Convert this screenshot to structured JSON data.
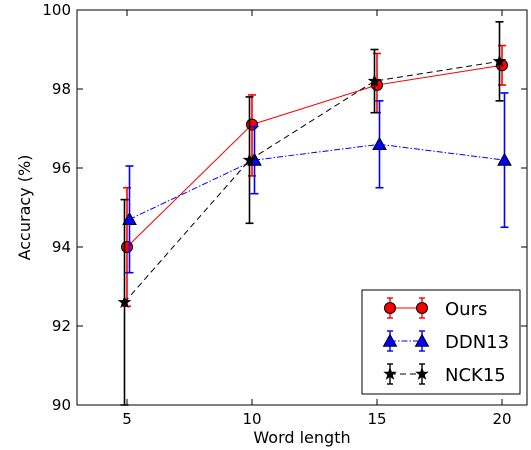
{
  "chart_data": {
    "type": "line",
    "xlabel": "Word length",
    "ylabel": "Accuracy (%)",
    "xlim": [
      3,
      21
    ],
    "ylim": [
      90,
      100
    ],
    "xticks": [
      5,
      10,
      15,
      20
    ],
    "yticks": [
      90,
      92,
      94,
      96,
      98,
      100
    ],
    "grid": false,
    "legend_position": "bottom-right",
    "series": [
      {
        "name": "Ours",
        "color": "#ff0000",
        "marker": "circle",
        "line_style": "solid",
        "x": [
          5.0,
          10.0,
          15.0,
          20.0
        ],
        "y": [
          94.0,
          97.1,
          98.1,
          98.6
        ],
        "err_low": [
          1.5,
          1.3,
          0.7,
          0.5
        ],
        "err_high": [
          1.5,
          0.75,
          0.8,
          0.5
        ]
      },
      {
        "name": "DDN13",
        "color": "#0000ff",
        "marker": "triangle",
        "line_style": "dashdot",
        "x": [
          5.1,
          10.1,
          15.1,
          20.1
        ],
        "y": [
          94.7,
          96.2,
          96.6,
          96.2
        ],
        "err_low": [
          1.35,
          0.85,
          1.1,
          1.7
        ],
        "err_high": [
          1.35,
          0.85,
          1.1,
          1.7
        ]
      },
      {
        "name": "NCK15",
        "color": "#000000",
        "marker": "star",
        "line_style": "dashed",
        "x": [
          4.9,
          9.9,
          14.9,
          19.9
        ],
        "y": [
          92.6,
          96.2,
          98.2,
          98.7
        ],
        "err_low": [
          2.6,
          1.6,
          0.8,
          1.0
        ],
        "err_high": [
          2.6,
          1.6,
          0.8,
          1.0
        ]
      }
    ]
  }
}
